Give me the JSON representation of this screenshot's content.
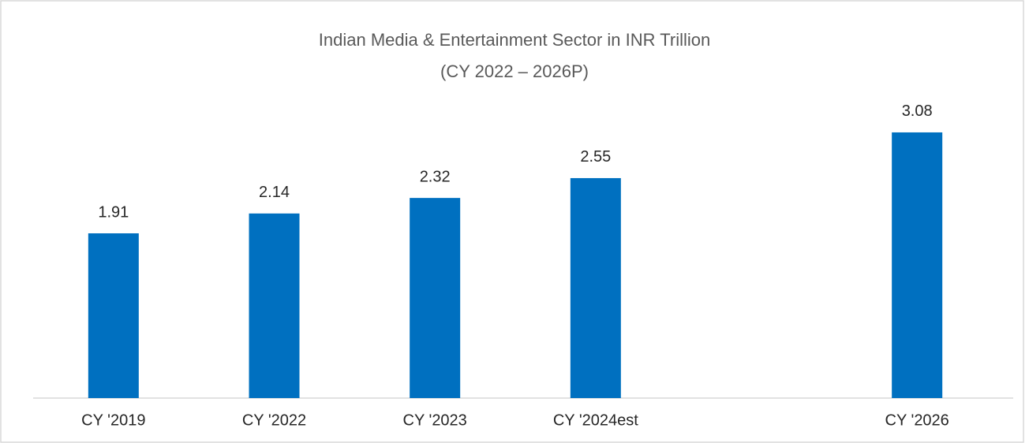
{
  "chart_data": {
    "type": "bar",
    "title": "Indian Media & Entertainment Sector in INR Trillion",
    "subtitle": "(CY 2022 – 2026P)",
    "categories": [
      "CY '2019",
      "CY '2022",
      "CY '2023",
      "CY '2024est",
      null,
      "CY '2026"
    ],
    "values": [
      1.91,
      2.14,
      2.32,
      2.55,
      null,
      3.08
    ],
    "color": "#0070c0",
    "ylim": [
      0,
      3.5
    ]
  }
}
